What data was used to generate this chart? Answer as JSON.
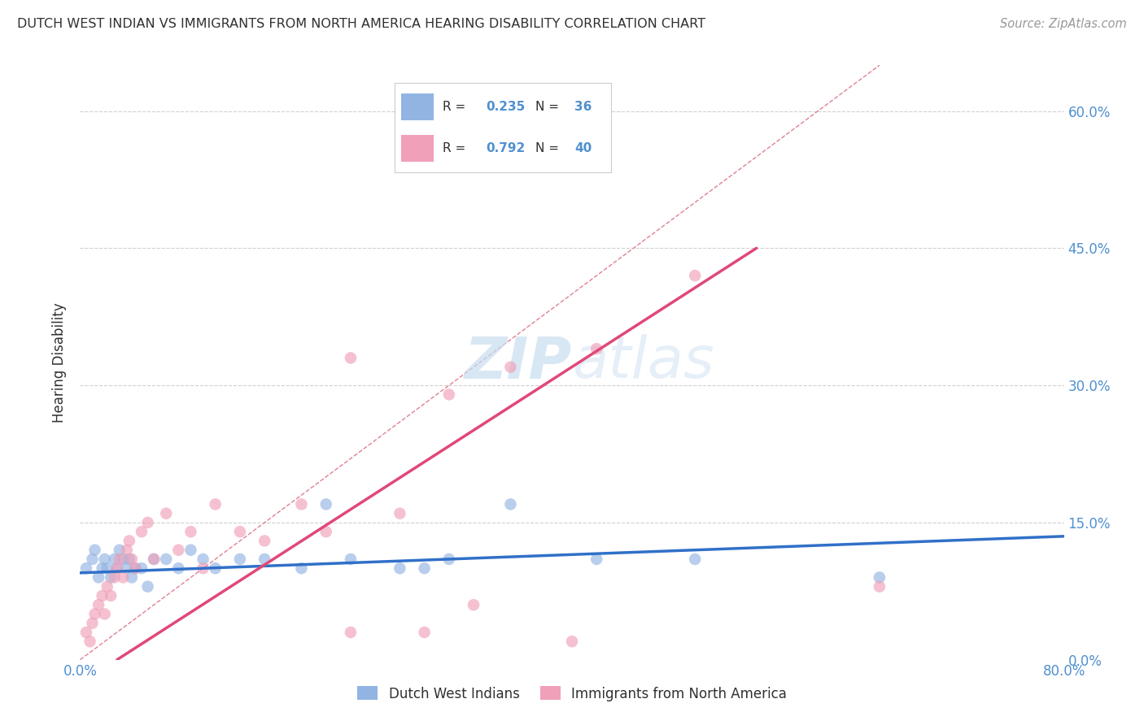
{
  "title": "DUTCH WEST INDIAN VS IMMIGRANTS FROM NORTH AMERICA HEARING DISABILITY CORRELATION CHART",
  "source": "Source: ZipAtlas.com",
  "ylabel": "Hearing Disability",
  "yticks_labels": [
    "0.0%",
    "15.0%",
    "30.0%",
    "45.0%",
    "60.0%"
  ],
  "ytick_vals": [
    0,
    15,
    30,
    45,
    60
  ],
  "xlim": [
    0,
    80
  ],
  "ylim": [
    0,
    65
  ],
  "blue_color": "#92b4e3",
  "pink_color": "#f0a0b8",
  "blue_line_color": "#3070c8",
  "pink_line_color": "#e04878",
  "diag_line_color": "#e08090",
  "grid_color": "#d0d0d0",
  "title_color": "#303030",
  "axis_tick_color": "#5090d0",
  "watermark_color": "#c8ddf0",
  "legend_border_color": "#cccccc",
  "blue_scatter_x": [
    0.5,
    1.0,
    1.2,
    1.5,
    1.8,
    2.0,
    2.2,
    2.5,
    2.8,
    3.0,
    3.2,
    3.5,
    3.8,
    4.0,
    4.2,
    4.5,
    5.0,
    5.5,
    6.0,
    7.0,
    8.0,
    9.0,
    10.0,
    11.0,
    13.0,
    15.0,
    18.0,
    22.0,
    26.0,
    30.0,
    35.0,
    42.0,
    50.0,
    65.0,
    20.0,
    28.0
  ],
  "blue_scatter_y": [
    10,
    11,
    12,
    9,
    10,
    11,
    10,
    9,
    11,
    10,
    12,
    11,
    10,
    11,
    9,
    10,
    10,
    8,
    11,
    11,
    10,
    12,
    11,
    10,
    11,
    11,
    10,
    11,
    10,
    11,
    17,
    11,
    11,
    9,
    17,
    10
  ],
  "pink_scatter_x": [
    0.5,
    0.8,
    1.0,
    1.2,
    1.5,
    1.8,
    2.0,
    2.2,
    2.5,
    2.8,
    3.0,
    3.2,
    3.5,
    3.8,
    4.0,
    4.2,
    4.5,
    5.0,
    5.5,
    6.0,
    7.0,
    8.0,
    9.0,
    10.0,
    11.0,
    13.0,
    15.0,
    18.0,
    22.0,
    26.0,
    30.0,
    35.0,
    42.0,
    50.0,
    65.0,
    20.0,
    28.0,
    22.0,
    32.0,
    40.0
  ],
  "pink_scatter_y": [
    3,
    2,
    4,
    5,
    6,
    7,
    5,
    8,
    7,
    9,
    10,
    11,
    9,
    12,
    13,
    11,
    10,
    14,
    15,
    11,
    16,
    12,
    14,
    10,
    17,
    14,
    13,
    17,
    33,
    16,
    29,
    32,
    34,
    42,
    8,
    14,
    3,
    3,
    6,
    2
  ],
  "blue_line_x": [
    0,
    80
  ],
  "blue_line_y": [
    9.5,
    13.5
  ],
  "pink_line_x": [
    3,
    55
  ],
  "pink_line_y": [
    0,
    45
  ],
  "diag_line_x": [
    0,
    65
  ],
  "diag_line_y": [
    0,
    65
  ],
  "legend_label_blue": "Dutch West Indians",
  "legend_label_pink": "Immigrants from North America",
  "marker_size": 110
}
